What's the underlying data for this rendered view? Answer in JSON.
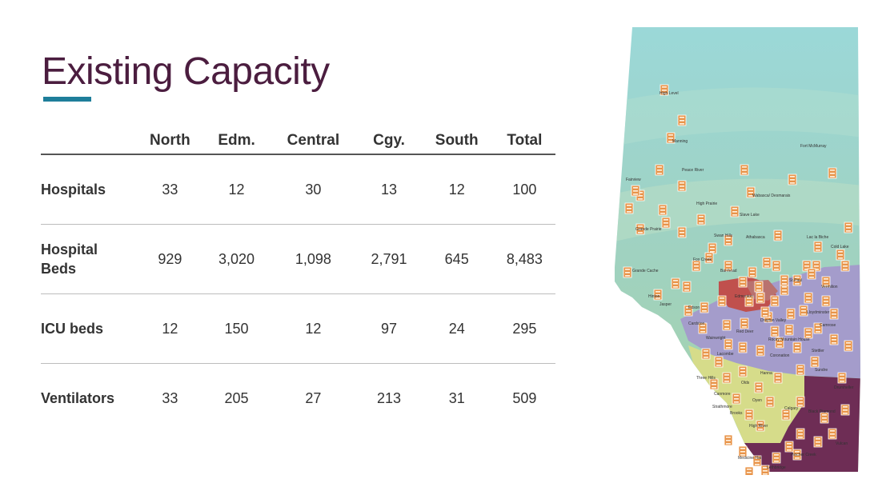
{
  "slide": {
    "title": "Existing Capacity"
  },
  "table": {
    "columns": [
      "North",
      "Edm.",
      "Central",
      "Cgy.",
      "South",
      "Total"
    ],
    "rows": [
      {
        "label": "Hospitals",
        "values": [
          "33",
          "12",
          "30",
          "13",
          "12",
          "100"
        ]
      },
      {
        "label": "Hospital Beds",
        "values": [
          "929",
          "3,020",
          "1,098",
          "2,791",
          "645",
          "8,483"
        ]
      },
      {
        "label": "ICU beds",
        "values": [
          "12",
          "150",
          "12",
          "97",
          "24",
          "295"
        ]
      },
      {
        "label": "Ventilators",
        "values": [
          "33",
          "205",
          "27",
          "213",
          "31",
          "509"
        ]
      }
    ]
  },
  "map": {
    "icon": "hospital-building-icon",
    "zone_colors": {
      "north": "#8fd0cf",
      "edmonton": "#c0504d",
      "central": "#9f97c7",
      "calgary": "#d6dc8a",
      "south": "#6e2d55"
    },
    "towns": [
      "High Level",
      "Fort McMurray",
      "Manning",
      "Peace River",
      "Fairview",
      "High Prairie",
      "Wabasca/ Desmarais",
      "Slave Lake",
      "Grande Prairie",
      "Swan Hills",
      "Athabasca",
      "Lac la Biche",
      "Cold Lake",
      "Fox Creek",
      "Barrhead",
      "Grande Cache",
      "Edmonton",
      "St.Paul",
      "Vermilion",
      "Hinton",
      "Edson",
      "Lloydminster",
      "Jasper",
      "Drayton Valley",
      "Camrose",
      "Wainwright",
      "Rocky Mountain House",
      "Red Deer",
      "Stettler",
      "Lacombe",
      "Coronation",
      "Sundre",
      "Three Hills",
      "Hanna",
      "Olds",
      "Drumheller",
      "Canmore",
      "Oyen",
      "Calgary",
      "Strathmore",
      "Black Diamond",
      "Brooks",
      "High River",
      "Vulcan",
      "Medicine Hat",
      "Pincher Creek",
      "Lethbridge",
      "Cardston"
    ]
  }
}
